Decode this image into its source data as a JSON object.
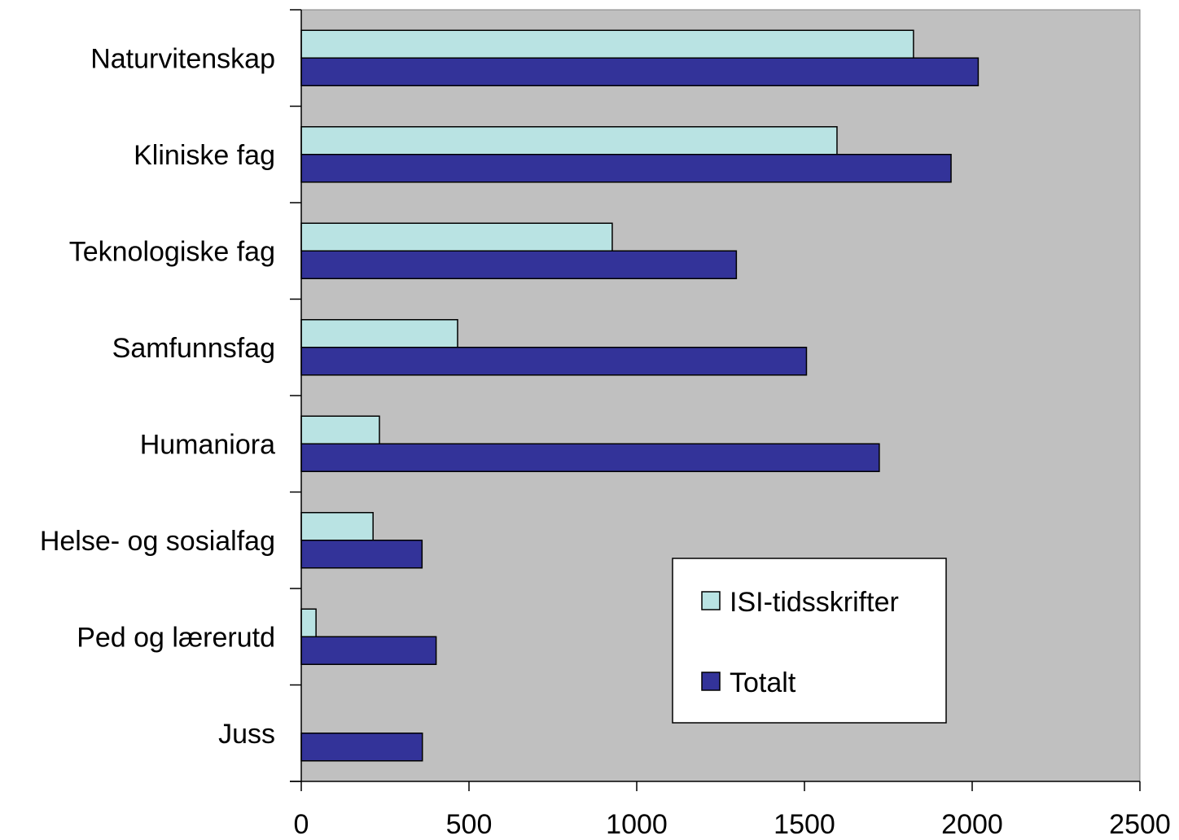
{
  "chart_data": {
    "type": "bar",
    "orientation": "horizontal",
    "categories": [
      "Naturvitenskap",
      "Kliniske fag",
      "Teknologiske fag",
      "Samfunnsfag",
      "Humaniora",
      "Helse- og sosialfag",
      "Ped og lærerutd",
      "Juss"
    ],
    "series": [
      {
        "name": "ISI-tidsskrifter",
        "color": "#b9e3e3",
        "values": [
          1825,
          1597,
          927,
          466,
          233,
          214,
          44,
          0
        ]
      },
      {
        "name": "Totalt",
        "color": "#333399",
        "values": [
          2018,
          1937,
          1297,
          1506,
          1723,
          360,
          402,
          361
        ]
      }
    ],
    "xticks": [
      "0",
      "500",
      "1000",
      "1500",
      "2000",
      "2500"
    ],
    "xlim": [
      0,
      2500
    ],
    "title": "",
    "xlabel": "",
    "ylabel": "",
    "plot_background": "#c0c0c0",
    "grid": false,
    "legend_position": "lower-right inside plot"
  }
}
